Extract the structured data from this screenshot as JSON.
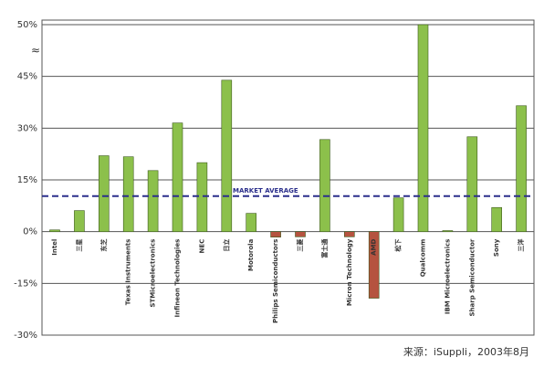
{
  "chart_data": {
    "type": "bar",
    "categories": [
      "Intel",
      "三星",
      "东芝",
      "Texas Instruments",
      "STMicroelectronics",
      "Infineon Technologies",
      "NEC",
      "日立",
      "Motorola",
      "Philips Semiconductors",
      "三菱",
      "富士通",
      "Micron Technology",
      "AMD",
      "松下",
      "Qualcomm",
      "IBM Microelectronics",
      "Sharp Semiconductor",
      "Sony",
      "三洋"
    ],
    "values": [
      0.5,
      6.1,
      22,
      21.7,
      17.7,
      31.5,
      20,
      43.9,
      5.3,
      -1.6,
      -1.5,
      26.7,
      -1.5,
      -19.3,
      9.8,
      50,
      0.3,
      27.5,
      7,
      36.5
    ],
    "colors": [
      "#8cc04b",
      "#8cc04b",
      "#8cc04b",
      "#8cc04b",
      "#8cc04b",
      "#8cc04b",
      "#8cc04b",
      "#8cc04b",
      "#8cc04b",
      "#b5533f",
      "#b5533f",
      "#8cc04b",
      "#b5533f",
      "#b5533f",
      "#8cc04b",
      "#8cc04b",
      "#8cc04b",
      "#8cc04b",
      "#8cc04b",
      "#8cc04b"
    ],
    "ylim": [
      -30,
      50
    ],
    "yticks": [
      {
        "value": -30,
        "label": "-30%"
      },
      {
        "value": -15,
        "label": "-15%"
      },
      {
        "value": 0,
        "label": "0%"
      },
      {
        "value": 15,
        "label": "15%"
      },
      {
        "value": 30,
        "label": "30%"
      },
      {
        "value": 45,
        "label": "45%"
      },
      {
        "value": 50,
        "label": "50%"
      }
    ],
    "grid": true,
    "reference_line": {
      "value": 10.3,
      "label": "MARKET AVERAGE",
      "color": "#2b2f8c"
    },
    "source": "来源：iSuppli，2003年8月"
  }
}
